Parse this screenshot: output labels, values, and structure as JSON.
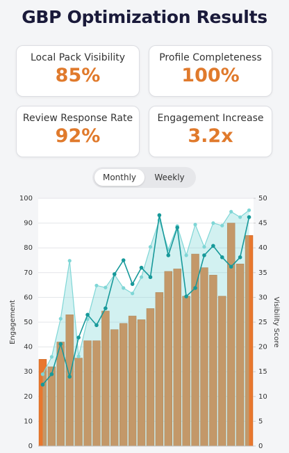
{
  "title": "GBP Optimization Results",
  "metrics": [
    {
      "label": "Local Pack Visibility",
      "value": "85%"
    },
    {
      "label": "Profile Completeness",
      "value": "100%"
    },
    {
      "label": "Review Response Rate",
      "value": "92%"
    },
    {
      "label": "Engagement Increase",
      "value": "3.2x"
    }
  ],
  "toggle": {
    "options": [
      "Monthly",
      "Weekly"
    ],
    "selected": "Monthly"
  },
  "chart_data": {
    "type": "bar_line",
    "ylabel": "Engagement",
    "y2label": "Visibility Score",
    "categories": [
      null,
      null,
      null,
      null,
      null,
      null,
      null,
      null,
      null,
      null,
      null,
      null,
      null,
      null,
      null,
      null,
      null,
      null,
      null,
      null,
      null,
      null,
      null,
      null
    ],
    "ylim": [
      0,
      100
    ],
    "yticks": [
      0,
      10,
      20,
      30,
      40,
      50,
      60,
      70,
      80,
      90,
      100
    ],
    "y2lim": [
      0,
      50
    ],
    "y2ticks": [
      0,
      5,
      10,
      15,
      20,
      25,
      30,
      35,
      40,
      45,
      50
    ],
    "grid": true,
    "series": [
      {
        "type": "bar",
        "color": "#e8772e",
        "values": [
          35,
          32,
          42,
          53,
          35.5,
          42.5,
          42.5,
          54.5,
          47,
          49.5,
          52.5,
          51,
          55.5,
          62,
          70.5,
          71.5,
          60.5,
          77.5,
          72,
          69,
          60.5,
          90,
          73.5,
          85
        ]
      },
      {
        "type": "area",
        "color": "#7fd6d6",
        "axis": "y2",
        "values": [
          14.5,
          18.0,
          25.7,
          37.4,
          18.1,
          25.6,
          32.4,
          32.0,
          34.6,
          31.9,
          30.8,
          34.1,
          40.2,
          45.6,
          39.7,
          44.4,
          38.5,
          44.7,
          40.2,
          45.0,
          44.5,
          47.3,
          46.2,
          47.6
        ]
      },
      {
        "type": "line",
        "color": "#17999a",
        "axis": "y2",
        "values": [
          12.4,
          14.5,
          20.6,
          14.0,
          21.9,
          26.5,
          24.4,
          27.8,
          34.7,
          37.5,
          32.7,
          36.0,
          34.1,
          46.6,
          38.5,
          44.1,
          30.2,
          31.9,
          38.5,
          40.4,
          38.1,
          36.2,
          38.1,
          46.2
        ]
      }
    ]
  }
}
